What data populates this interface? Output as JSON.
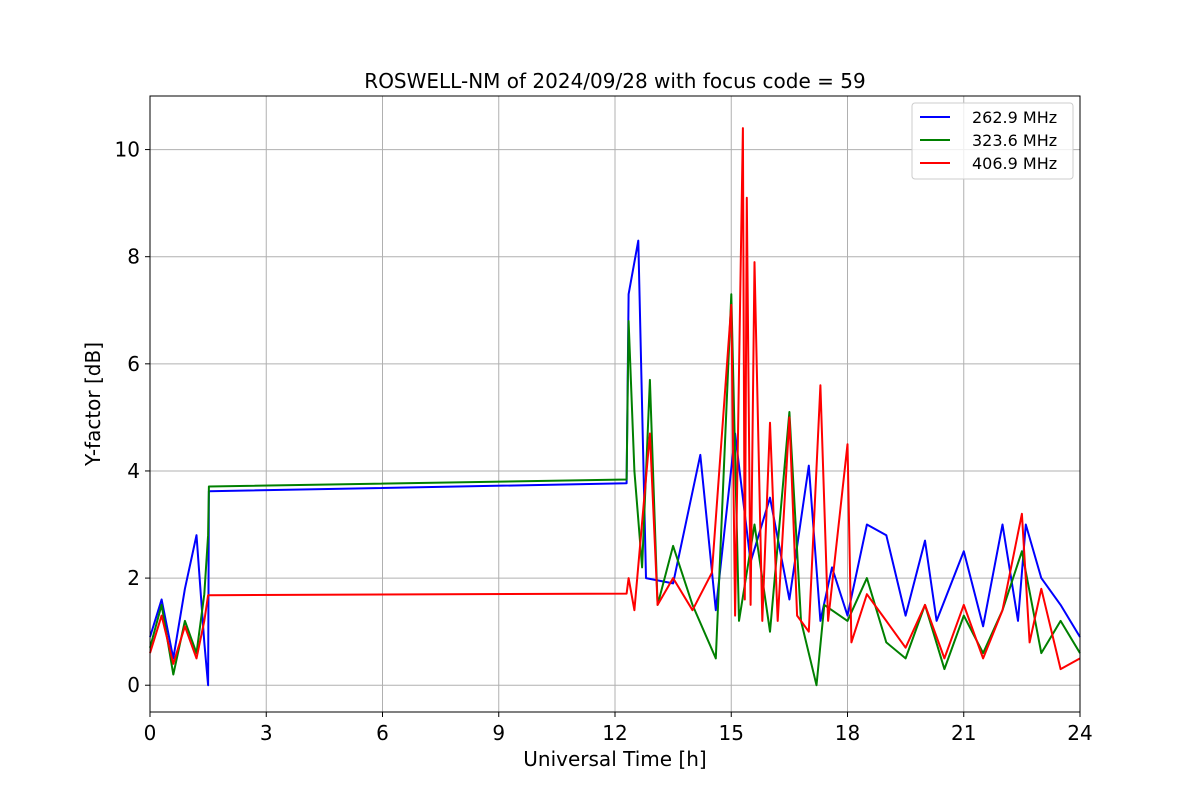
{
  "chart_data": {
    "type": "line",
    "title": "ROSWELL-NM of 2024/09/28 with focus code = 59",
    "xlabel": "Universal Time [h]",
    "ylabel": "Y-factor [dB]",
    "xlim": [
      0,
      24
    ],
    "ylim": [
      -0.5,
      11
    ],
    "xticks": [
      0,
      3,
      6,
      9,
      12,
      15,
      18,
      21,
      24
    ],
    "yticks": [
      0,
      2,
      4,
      6,
      8,
      10
    ],
    "grid": true,
    "legend_position": "top-right",
    "series": [
      {
        "name": "262.9 MHz",
        "color": "#0000ff",
        "points": [
          [
            0,
            0.9
          ],
          [
            0.3,
            1.6
          ],
          [
            0.6,
            0.5
          ],
          [
            0.9,
            1.8
          ],
          [
            1.2,
            2.8
          ],
          [
            1.4,
            0.8
          ],
          [
            1.5,
            0.0
          ],
          [
            1.52,
            3.62
          ],
          [
            12.3,
            3.77
          ],
          [
            12.35,
            7.3
          ],
          [
            12.6,
            8.3
          ],
          [
            12.8,
            2.0
          ],
          [
            13.5,
            1.9
          ],
          [
            14.2,
            4.3
          ],
          [
            14.6,
            1.4
          ],
          [
            15.1,
            4.7
          ],
          [
            15.5,
            2.3
          ],
          [
            16.0,
            3.5
          ],
          [
            16.5,
            1.6
          ],
          [
            17.0,
            4.1
          ],
          [
            17.3,
            1.2
          ],
          [
            17.6,
            2.2
          ],
          [
            18.0,
            1.3
          ],
          [
            18.5,
            3.0
          ],
          [
            19.0,
            2.8
          ],
          [
            19.5,
            1.3
          ],
          [
            20.0,
            2.7
          ],
          [
            20.3,
            1.2
          ],
          [
            21.0,
            2.5
          ],
          [
            21.5,
            1.1
          ],
          [
            22.0,
            3.0
          ],
          [
            22.4,
            1.2
          ],
          [
            22.6,
            3.0
          ],
          [
            23.0,
            2.0
          ],
          [
            23.5,
            1.5
          ],
          [
            24.0,
            0.9
          ]
        ]
      },
      {
        "name": "323.6 MHz",
        "color": "#008000",
        "points": [
          [
            0,
            0.7
          ],
          [
            0.3,
            1.5
          ],
          [
            0.6,
            0.2
          ],
          [
            0.9,
            1.2
          ],
          [
            1.2,
            0.6
          ],
          [
            1.4,
            1.7
          ],
          [
            1.5,
            2.8
          ],
          [
            1.52,
            3.71
          ],
          [
            12.3,
            3.84
          ],
          [
            12.35,
            6.8
          ],
          [
            12.5,
            4.0
          ],
          [
            12.7,
            2.2
          ],
          [
            12.9,
            5.7
          ],
          [
            13.1,
            1.5
          ],
          [
            13.5,
            2.6
          ],
          [
            14.0,
            1.5
          ],
          [
            14.6,
            0.5
          ],
          [
            15.0,
            7.3
          ],
          [
            15.2,
            1.2
          ],
          [
            15.6,
            3.0
          ],
          [
            16.0,
            1.0
          ],
          [
            16.5,
            5.1
          ],
          [
            16.8,
            1.2
          ],
          [
            17.2,
            0.0
          ],
          [
            17.4,
            1.5
          ],
          [
            18.0,
            1.2
          ],
          [
            18.5,
            2.0
          ],
          [
            19.0,
            0.8
          ],
          [
            19.5,
            0.5
          ],
          [
            20.0,
            1.5
          ],
          [
            20.5,
            0.3
          ],
          [
            21.0,
            1.3
          ],
          [
            21.5,
            0.6
          ],
          [
            22.0,
            1.4
          ],
          [
            22.5,
            2.5
          ],
          [
            23.0,
            0.6
          ],
          [
            23.5,
            1.2
          ],
          [
            24.0,
            0.6
          ]
        ]
      },
      {
        "name": "406.9 MHz",
        "color": "#ff0000",
        "points": [
          [
            0,
            0.6
          ],
          [
            0.3,
            1.3
          ],
          [
            0.6,
            0.4
          ],
          [
            0.9,
            1.1
          ],
          [
            1.2,
            0.5
          ],
          [
            1.4,
            1.2
          ],
          [
            1.5,
            1.68
          ],
          [
            12.3,
            1.71
          ],
          [
            12.35,
            2.0
          ],
          [
            12.5,
            1.4
          ],
          [
            12.9,
            4.7
          ],
          [
            13.1,
            1.5
          ],
          [
            13.5,
            2.0
          ],
          [
            14.0,
            1.4
          ],
          [
            14.5,
            2.1
          ],
          [
            15.0,
            7.1
          ],
          [
            15.1,
            1.3
          ],
          [
            15.3,
            10.4
          ],
          [
            15.35,
            1.6
          ],
          [
            15.4,
            9.1
          ],
          [
            15.5,
            1.5
          ],
          [
            15.6,
            7.9
          ],
          [
            15.8,
            1.2
          ],
          [
            16.0,
            4.9
          ],
          [
            16.2,
            1.2
          ],
          [
            16.5,
            5.0
          ],
          [
            16.7,
            1.3
          ],
          [
            17.0,
            1.0
          ],
          [
            17.3,
            5.6
          ],
          [
            17.5,
            1.2
          ],
          [
            18.0,
            4.5
          ],
          [
            18.1,
            0.8
          ],
          [
            18.5,
            1.7
          ],
          [
            19.0,
            1.2
          ],
          [
            19.5,
            0.7
          ],
          [
            20.0,
            1.5
          ],
          [
            20.5,
            0.5
          ],
          [
            21.0,
            1.5
          ],
          [
            21.5,
            0.5
          ],
          [
            22.0,
            1.4
          ],
          [
            22.5,
            3.2
          ],
          [
            22.7,
            0.8
          ],
          [
            23.0,
            1.8
          ],
          [
            23.5,
            0.3
          ],
          [
            24.0,
            0.5
          ]
        ]
      }
    ]
  }
}
